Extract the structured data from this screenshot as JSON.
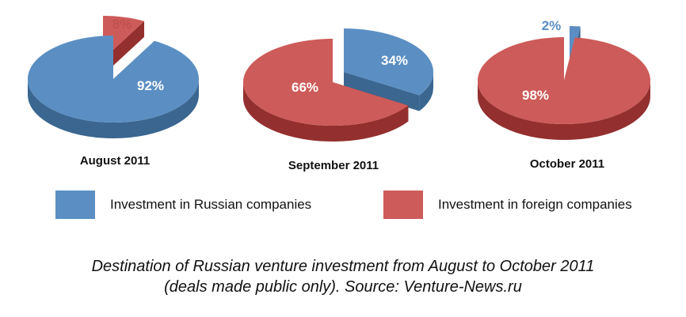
{
  "chart_data": {
    "type": "pie",
    "style": "3d-exploded",
    "legend_placement": "below",
    "series": [
      {
        "name": "Investment in Russian companies",
        "color": "#5b8fc3"
      },
      {
        "name": "Investment in foreign companies",
        "color": "#cd5b59"
      }
    ],
    "charts": [
      {
        "title": "August 2011",
        "slices": [
          {
            "series": "Investment in Russian companies",
            "value": 92,
            "label": "92%",
            "exploded": false
          },
          {
            "series": "Investment in foreign companies",
            "value": 8,
            "label": "8%",
            "exploded": true
          }
        ]
      },
      {
        "title": "September 2011",
        "slices": [
          {
            "series": "Investment in Russian companies",
            "value": 34,
            "label": "34%",
            "exploded": true
          },
          {
            "series": "Investment in foreign companies",
            "value": 66,
            "label": "66%",
            "exploded": false
          }
        ]
      },
      {
        "title": "October 2011",
        "slices": [
          {
            "series": "Investment in Russian companies",
            "value": 2,
            "label": "2%",
            "exploded": true
          },
          {
            "series": "Investment in foreign companies",
            "value": 98,
            "label": "98%",
            "exploded": false
          }
        ]
      }
    ]
  },
  "legend": {
    "russian": "Investment in Russian companies",
    "foreign": "Investment in foreign companies"
  },
  "caption": {
    "line1": "Destination of Russian venture investment from August to October 2011",
    "line2": "(deals made public only). Source: Venture-News.ru"
  },
  "colors": {
    "russian_top": "#5b8fc3",
    "russian_side": "#3a6690",
    "foreign_top": "#cd5b59",
    "foreign_side": "#93302f",
    "label_on_slice": "#ffffff",
    "foreign_outer_label": "#c0504d",
    "russian_outer_label": "#5b8fc3"
  }
}
